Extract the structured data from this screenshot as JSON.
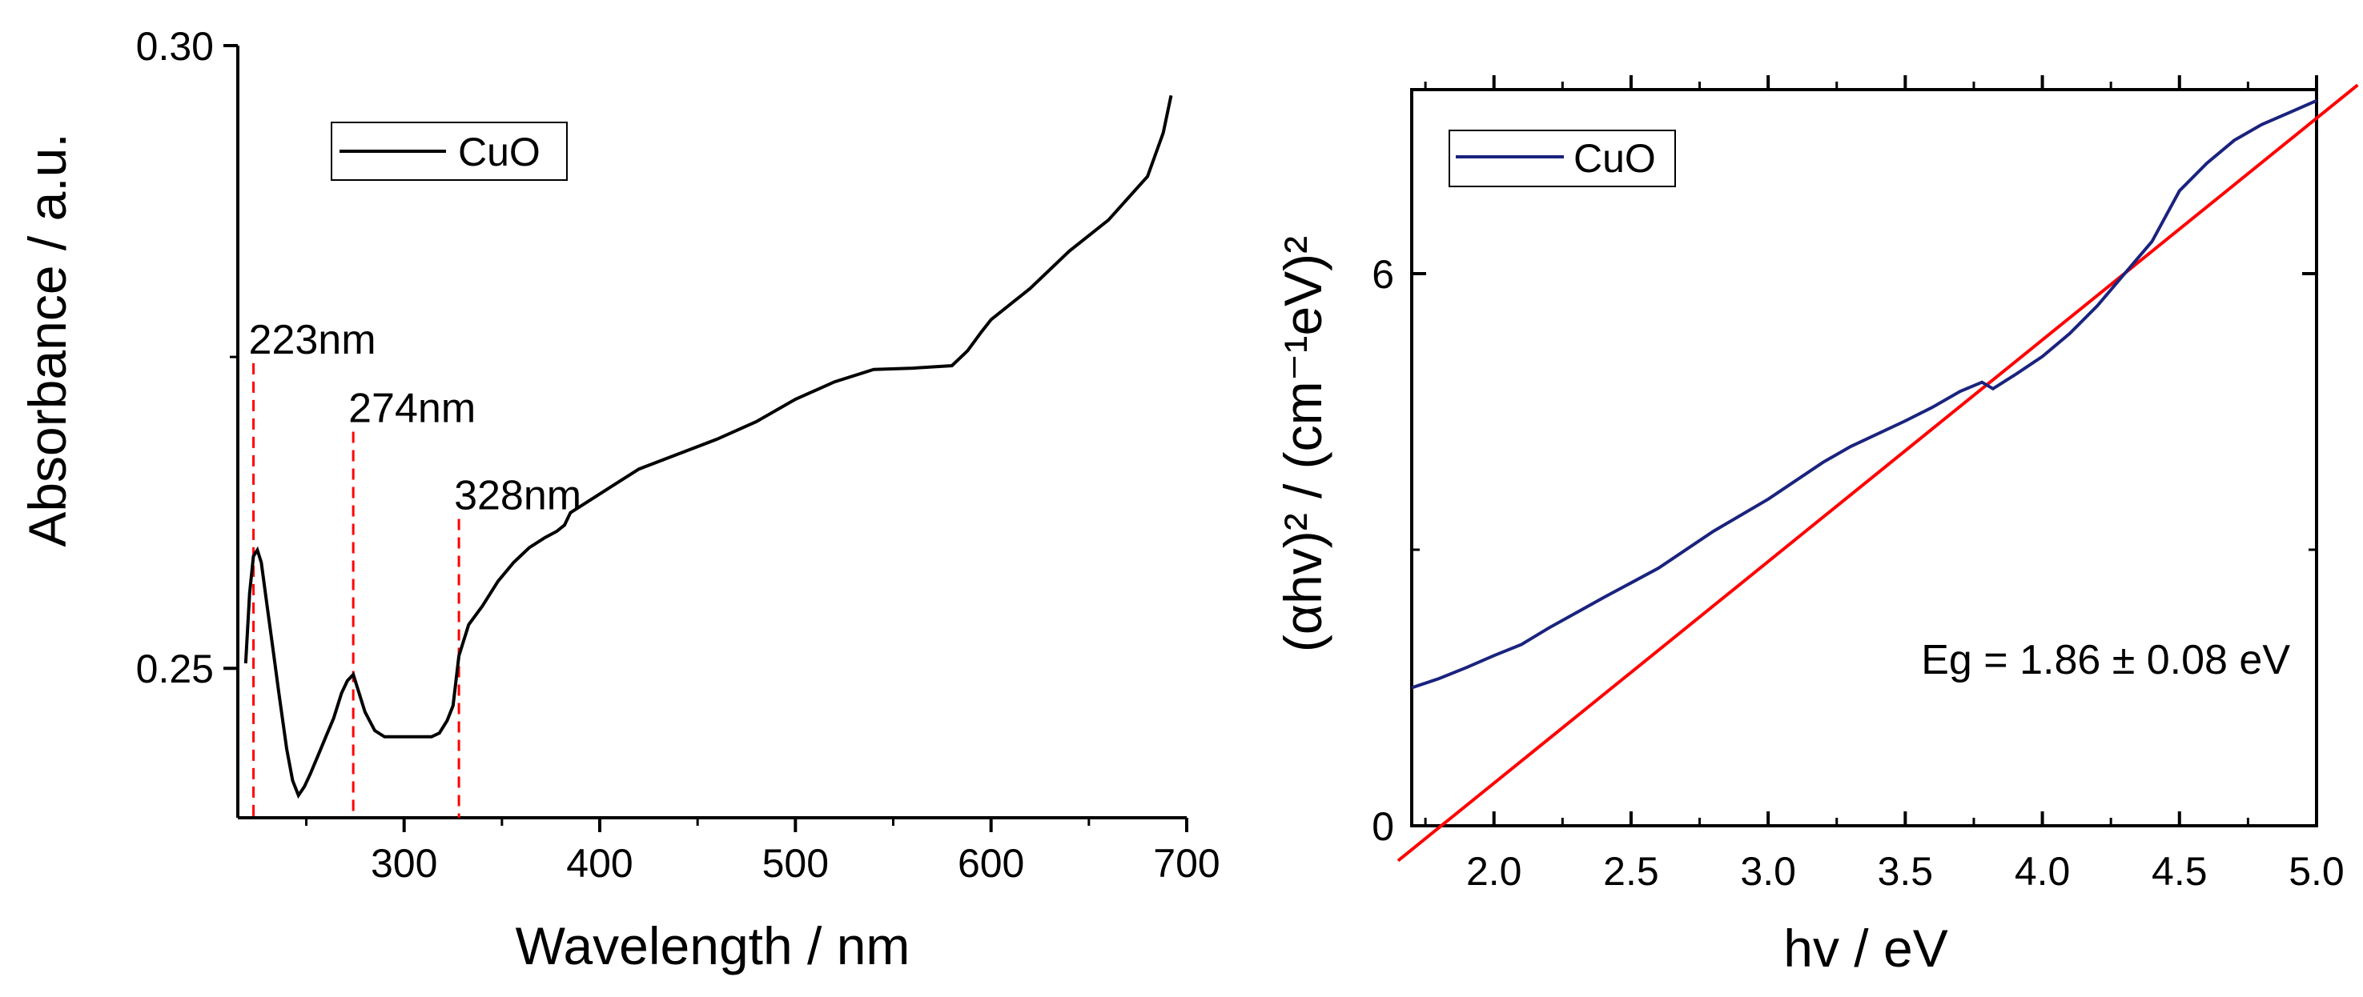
{
  "chart_data": [
    {
      "type": "line",
      "xlabel": "Wavelength / nm",
      "ylabel": "Absorbance / a.u.",
      "xlim": [
        215,
        700
      ],
      "ylim": [
        0.238,
        0.3
      ],
      "x_ticks": [
        300,
        400,
        500,
        600,
        700
      ],
      "x_tick_labels": [
        "300",
        "400",
        "500",
        "600",
        "700"
      ],
      "y_ticks": [
        0.25,
        0.3
      ],
      "y_tick_labels": [
        "0.25",
        "0.30"
      ],
      "legend": {
        "placement": "top-left",
        "labels": [
          "CuO"
        ]
      },
      "series": [
        {
          "name": "CuO",
          "color": "#000000",
          "x": [
            219,
            221,
            223,
            225,
            227,
            230,
            233,
            236,
            240,
            243,
            246,
            249,
            252,
            256,
            260,
            264,
            268,
            271,
            274,
            277,
            280,
            285,
            290,
            296,
            302,
            308,
            314,
            318,
            322,
            325,
            328,
            333,
            340,
            348,
            356,
            364,
            372,
            378,
            382,
            385,
            390,
            400,
            420,
            440,
            460,
            480,
            500,
            520,
            540,
            560,
            580,
            588,
            595,
            600,
            620,
            640,
            660,
            680,
            688,
            692
          ],
          "y": [
            0.2504,
            0.256,
            0.259,
            0.2595,
            0.2585,
            0.255,
            0.2515,
            0.248,
            0.2435,
            0.241,
            0.2398,
            0.2405,
            0.2415,
            0.243,
            0.2445,
            0.246,
            0.248,
            0.249,
            0.2495,
            0.248,
            0.2465,
            0.245,
            0.2445,
            0.2445,
            0.2445,
            0.2445,
            0.2445,
            0.2448,
            0.2458,
            0.247,
            0.251,
            0.2535,
            0.255,
            0.257,
            0.2585,
            0.2597,
            0.2605,
            0.261,
            0.2615,
            0.2625,
            0.263,
            0.264,
            0.266,
            0.2672,
            0.2684,
            0.2698,
            0.2716,
            0.273,
            0.274,
            0.2741,
            0.2743,
            0.2755,
            0.277,
            0.278,
            0.2805,
            0.2835,
            0.286,
            0.2895,
            0.293,
            0.296
          ]
        }
      ],
      "markers": [
        {
          "label": "223nm",
          "x": 223,
          "y_top": 0.2745
        },
        {
          "label": "274nm",
          "x": 274,
          "y_top": 0.269
        },
        {
          "label": "328nm",
          "x": 328,
          "y_top": 0.262
        }
      ]
    },
    {
      "type": "line",
      "xlabel": "hv / eV",
      "ylabel": "(αhv)² / (cm⁻¹eV)²",
      "xlim": [
        1.7,
        5.0
      ],
      "ylim": [
        0,
        8
      ],
      "x_ticks": [
        2.0,
        2.5,
        3.0,
        3.5,
        4.0,
        4.5,
        5.0
      ],
      "x_tick_labels": [
        "2.0",
        "2.5",
        "3.0",
        "3.5",
        "4.0",
        "4.5",
        "5.0"
      ],
      "y_ticks": [
        0,
        6
      ],
      "y_tick_labels": [
        "0",
        "6"
      ],
      "legend": {
        "placement": "top-left",
        "labels": [
          "CuO"
        ]
      },
      "series": [
        {
          "name": "CuO",
          "color": "#1a237e",
          "x": [
            1.7,
            1.8,
            1.9,
            2.0,
            2.1,
            2.2,
            2.4,
            2.6,
            2.8,
            3.0,
            3.2,
            3.3,
            3.5,
            3.6,
            3.7,
            3.78,
            3.82,
            3.9,
            4.0,
            4.1,
            4.2,
            4.3,
            4.4,
            4.5,
            4.6,
            4.7,
            4.8,
            4.9,
            5.0
          ],
          "y": [
            1.5,
            1.6,
            1.72,
            1.85,
            1.97,
            2.15,
            2.48,
            2.8,
            3.2,
            3.55,
            3.95,
            4.12,
            4.4,
            4.55,
            4.72,
            4.82,
            4.75,
            4.9,
            5.1,
            5.35,
            5.65,
            6.0,
            6.35,
            6.9,
            7.2,
            7.45,
            7.62,
            7.75,
            7.88
          ]
        },
        {
          "name": "Linear fit",
          "color": "#ff0000",
          "x": [
            1.65,
            5.15
          ],
          "y": [
            -0.38,
            8.05
          ]
        }
      ],
      "annotations": [
        "Eg = 1.86 ± 0.08 eV"
      ]
    }
  ]
}
